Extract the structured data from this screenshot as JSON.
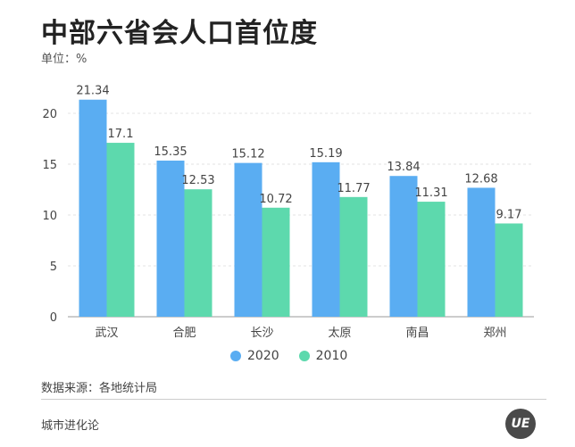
{
  "title": "中部六省会人口首位度",
  "unit_label": "单位：%",
  "source": "数据来源：各地统计局",
  "brand": "城市进化论",
  "logo_text": "UE",
  "colors": {
    "s2020": "#5aadf2",
    "s2010": "#5dd9ad",
    "grid": "#e3e3e3",
    "axis": "#999999",
    "label": "#444444"
  },
  "chart_data": {
    "type": "bar",
    "categories": [
      "武汉",
      "合肥",
      "长沙",
      "太原",
      "南昌",
      "郑州"
    ],
    "series": [
      {
        "name": "2020",
        "values": [
          21.34,
          15.35,
          15.12,
          15.19,
          13.84,
          12.68
        ],
        "labels": [
          "21.34",
          "15.35",
          "15.12",
          "15.19",
          "13.84",
          "12.68"
        ]
      },
      {
        "name": "2010",
        "values": [
          17.1,
          12.53,
          10.72,
          11.77,
          11.31,
          9.17
        ],
        "labels": [
          "17.1",
          "12.53",
          "10.72",
          "11.77",
          "11.31",
          "9.17"
        ]
      }
    ],
    "yticks": [
      "0",
      "5",
      "10",
      "15",
      "20"
    ],
    "ylim": [
      0,
      23
    ],
    "grid": true,
    "legend": "bottom"
  }
}
